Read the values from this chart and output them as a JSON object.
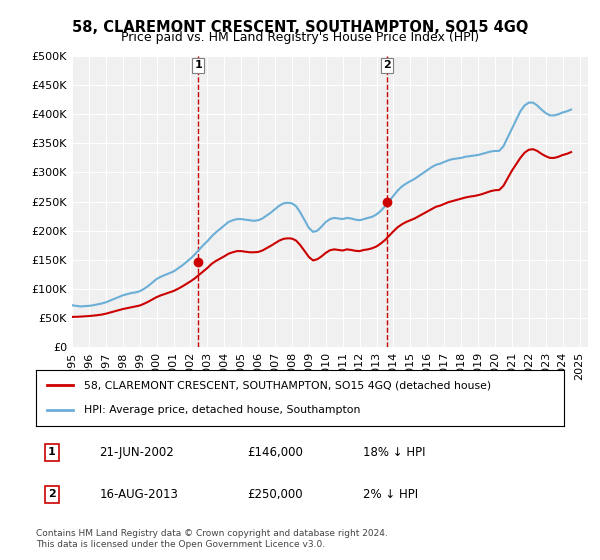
{
  "title": "58, CLAREMONT CRESCENT, SOUTHAMPTON, SO15 4GQ",
  "subtitle": "Price paid vs. HM Land Registry's House Price Index (HPI)",
  "ylabel_ticks": [
    "£0",
    "£50K",
    "£100K",
    "£150K",
    "£200K",
    "£250K",
    "£300K",
    "£350K",
    "£400K",
    "£450K",
    "£500K"
  ],
  "ytick_values": [
    0,
    50000,
    100000,
    150000,
    200000,
    250000,
    300000,
    350000,
    400000,
    450000,
    500000
  ],
  "ylim": [
    0,
    500000
  ],
  "xlim_start": 1995.0,
  "xlim_end": 2025.5,
  "sale1_date": 2002.47,
  "sale1_price": 146000,
  "sale1_label": "1",
  "sale1_text": "21-JUN-2002    £146,000    18% ↓ HPI",
  "sale2_date": 2013.62,
  "sale2_price": 250000,
  "sale2_label": "2",
  "sale2_text": "16-AUG-2013    £250,000    2% ↓ HPI",
  "legend_line1": "58, CLAREMONT CRESCENT, SOUTHAMPTON, SO15 4GQ (detached house)",
  "legend_line2": "HPI: Average price, detached house, Southampton",
  "footnote": "Contains HM Land Registry data © Crown copyright and database right 2024.\nThis data is licensed under the Open Government Licence v3.0.",
  "hpi_color": "#6baed6",
  "sale_color": "#cc0000",
  "dashed_color": "#cc0000",
  "background_color": "#ffffff",
  "plot_bg_color": "#f0f0f0",
  "hpi_data": {
    "years": [
      1995.0,
      1995.25,
      1995.5,
      1995.75,
      1996.0,
      1996.25,
      1996.5,
      1996.75,
      1997.0,
      1997.25,
      1997.5,
      1997.75,
      1998.0,
      1998.25,
      1998.5,
      1998.75,
      1999.0,
      1999.25,
      1999.5,
      1999.75,
      2000.0,
      2000.25,
      2000.5,
      2000.75,
      2001.0,
      2001.25,
      2001.5,
      2001.75,
      2002.0,
      2002.25,
      2002.5,
      2002.75,
      2003.0,
      2003.25,
      2003.5,
      2003.75,
      2004.0,
      2004.25,
      2004.5,
      2004.75,
      2005.0,
      2005.25,
      2005.5,
      2005.75,
      2006.0,
      2006.25,
      2006.5,
      2006.75,
      2007.0,
      2007.25,
      2007.5,
      2007.75,
      2008.0,
      2008.25,
      2008.5,
      2008.75,
      2009.0,
      2009.25,
      2009.5,
      2009.75,
      2010.0,
      2010.25,
      2010.5,
      2010.75,
      2011.0,
      2011.25,
      2011.5,
      2011.75,
      2012.0,
      2012.25,
      2012.5,
      2012.75,
      2013.0,
      2013.25,
      2013.5,
      2013.75,
      2014.0,
      2014.25,
      2014.5,
      2014.75,
      2015.0,
      2015.25,
      2015.5,
      2015.75,
      2016.0,
      2016.25,
      2016.5,
      2016.75,
      2017.0,
      2017.25,
      2017.5,
      2017.75,
      2018.0,
      2018.25,
      2018.5,
      2018.75,
      2019.0,
      2019.25,
      2019.5,
      2019.75,
      2020.0,
      2020.25,
      2020.5,
      2020.75,
      2021.0,
      2021.25,
      2021.5,
      2021.75,
      2022.0,
      2022.25,
      2022.5,
      2022.75,
      2023.0,
      2023.25,
      2023.5,
      2023.75,
      2024.0,
      2024.25,
      2024.5
    ],
    "prices": [
      72000,
      71000,
      70000,
      70500,
      71000,
      72000,
      73500,
      75000,
      77000,
      80000,
      83000,
      86000,
      89000,
      91000,
      93000,
      94000,
      96000,
      100000,
      105000,
      111000,
      117000,
      121000,
      124000,
      127000,
      130000,
      135000,
      140000,
      146000,
      152000,
      159000,
      167000,
      175000,
      182000,
      190000,
      197000,
      203000,
      209000,
      215000,
      218000,
      220000,
      220000,
      219000,
      218000,
      217000,
      218000,
      221000,
      226000,
      231000,
      237000,
      243000,
      247000,
      248000,
      247000,
      242000,
      231000,
      218000,
      205000,
      198000,
      200000,
      207000,
      215000,
      220000,
      222000,
      221000,
      220000,
      222000,
      221000,
      219000,
      218000,
      220000,
      222000,
      224000,
      228000,
      234000,
      242000,
      251000,
      260000,
      269000,
      276000,
      281000,
      285000,
      289000,
      294000,
      299000,
      304000,
      309000,
      313000,
      315000,
      318000,
      321000,
      323000,
      324000,
      325000,
      327000,
      328000,
      329000,
      330000,
      332000,
      334000,
      336000,
      337000,
      337000,
      345000,
      360000,
      375000,
      390000,
      405000,
      415000,
      420000,
      420000,
      415000,
      408000,
      402000,
      398000,
      398000,
      400000,
      403000,
      405000,
      408000
    ]
  },
  "sale_data": {
    "years": [
      1995.0,
      1995.25,
      1995.5,
      1995.75,
      1996.0,
      1996.25,
      1996.5,
      1996.75,
      1997.0,
      1997.25,
      1997.5,
      1997.75,
      1998.0,
      1998.25,
      1998.5,
      1998.75,
      1999.0,
      1999.25,
      1999.5,
      1999.75,
      2000.0,
      2000.25,
      2000.5,
      2000.75,
      2001.0,
      2001.25,
      2001.5,
      2001.75,
      2002.0,
      2002.25,
      2002.5,
      2002.75,
      2003.0,
      2003.25,
      2003.5,
      2003.75,
      2004.0,
      2004.25,
      2004.5,
      2004.75,
      2005.0,
      2005.25,
      2005.5,
      2005.75,
      2006.0,
      2006.25,
      2006.5,
      2006.75,
      2007.0,
      2007.25,
      2007.5,
      2007.75,
      2008.0,
      2008.25,
      2008.5,
      2008.75,
      2009.0,
      2009.25,
      2009.5,
      2009.75,
      2010.0,
      2010.25,
      2010.5,
      2010.75,
      2011.0,
      2011.25,
      2011.5,
      2011.75,
      2012.0,
      2012.25,
      2012.5,
      2012.75,
      2013.0,
      2013.25,
      2013.5,
      2013.75,
      2014.0,
      2014.25,
      2014.5,
      2014.75,
      2015.0,
      2015.25,
      2015.5,
      2015.75,
      2016.0,
      2016.25,
      2016.5,
      2016.75,
      2017.0,
      2017.25,
      2017.5,
      2017.75,
      2018.0,
      2018.25,
      2018.5,
      2018.75,
      2019.0,
      2019.25,
      2019.5,
      2019.75,
      2020.0,
      2020.25,
      2020.5,
      2020.75,
      2021.0,
      2021.25,
      2021.5,
      2021.75,
      2022.0,
      2022.25,
      2022.5,
      2022.75,
      2023.0,
      2023.25,
      2023.5,
      2023.75,
      2024.0,
      2024.25,
      2024.5
    ],
    "prices": [
      52000,
      52200,
      52500,
      53000,
      53500,
      54200,
      55000,
      56000,
      57500,
      59500,
      61500,
      63500,
      65500,
      67000,
      68500,
      70000,
      71500,
      74500,
      78000,
      82000,
      86000,
      89000,
      91500,
      94000,
      96500,
      100000,
      104000,
      108500,
      113000,
      118000,
      124000,
      130000,
      136000,
      143000,
      148000,
      152000,
      156000,
      160500,
      163000,
      165000,
      165000,
      164000,
      163000,
      163000,
      163500,
      166000,
      170000,
      174000,
      178500,
      183000,
      186000,
      187000,
      186500,
      183000,
      175000,
      165000,
      155000,
      149000,
      151000,
      156000,
      162000,
      166500,
      168000,
      167000,
      166000,
      168000,
      167000,
      165500,
      165000,
      167000,
      168000,
      170000,
      173000,
      178000,
      184000,
      191500,
      199000,
      206000,
      211000,
      215000,
      218000,
      221000,
      225000,
      229000,
      233000,
      237000,
      241000,
      243000,
      246000,
      249000,
      251000,
      253000,
      255000,
      257000,
      258500,
      259500,
      261000,
      263000,
      265500,
      268000,
      269500,
      270000,
      277000,
      290000,
      303000,
      314000,
      325000,
      334000,
      339000,
      340000,
      337000,
      332000,
      328000,
      325000,
      325000,
      327000,
      330000,
      332000,
      335000
    ]
  }
}
